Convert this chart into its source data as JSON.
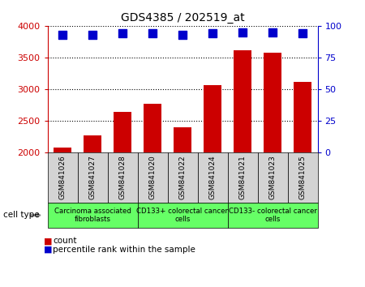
{
  "title": "GDS4385 / 202519_at",
  "samples": [
    "GSM841026",
    "GSM841027",
    "GSM841028",
    "GSM841020",
    "GSM841022",
    "GSM841024",
    "GSM841021",
    "GSM841023",
    "GSM841025"
  ],
  "counts": [
    2070,
    2270,
    2640,
    2770,
    2390,
    3060,
    3610,
    3580,
    3110
  ],
  "percentile_ranks": [
    93,
    93,
    94,
    94,
    93,
    94,
    95,
    95,
    94
  ],
  "ylim_left": [
    2000,
    4000
  ],
  "ylim_right": [
    0,
    100
  ],
  "yticks_left": [
    2000,
    2500,
    3000,
    3500,
    4000
  ],
  "yticks_right": [
    0,
    25,
    50,
    75,
    100
  ],
  "bar_color": "#cc0000",
  "dot_color": "#0000cc",
  "cell_types": [
    {
      "label": "Carcinoma associated\nfibroblasts",
      "start": 0,
      "end": 3
    },
    {
      "label": "CD133+ colorectal cancer\ncells",
      "start": 3,
      "end": 6
    },
    {
      "label": "CD133- colorectal cancer\ncells",
      "start": 6,
      "end": 9
    }
  ],
  "cell_type_color": "#66ff66",
  "sample_box_color": "#d3d3d3",
  "cell_type_label": "cell type",
  "legend_count_label": "count",
  "legend_percentile_label": "percentile rank within the sample",
  "bar_width": 0.6,
  "dot_size": 50,
  "left_tick_color": "#cc0000",
  "right_tick_color": "#0000cc"
}
